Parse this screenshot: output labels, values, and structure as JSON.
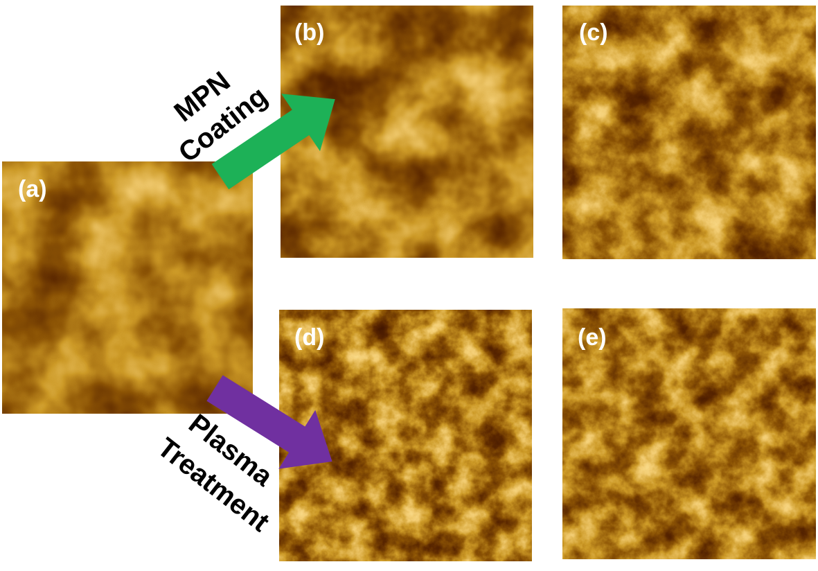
{
  "panels": [
    {
      "label": "(a)"
    },
    {
      "label": "(b)"
    },
    {
      "label": "(c)"
    },
    {
      "label": "(d)"
    },
    {
      "label": "(e)"
    }
  ],
  "arrows": [
    {
      "lines": [
        "MPN",
        "Coating"
      ]
    },
    {
      "lines": [
        "Plasma",
        "Treatment"
      ]
    }
  ]
}
